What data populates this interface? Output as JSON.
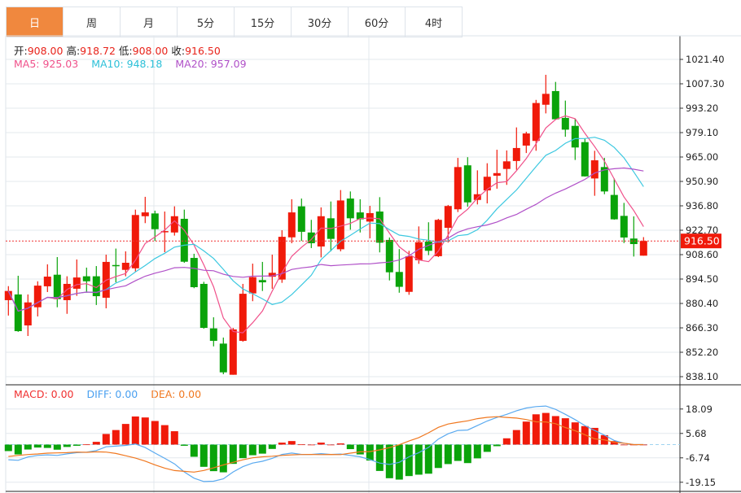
{
  "tabs": [
    {
      "label": "日",
      "active": true
    },
    {
      "label": "周",
      "active": false
    },
    {
      "label": "月",
      "active": false
    },
    {
      "label": "5分",
      "active": false
    },
    {
      "label": "15分",
      "active": false
    },
    {
      "label": "30分",
      "active": false
    },
    {
      "label": "60分",
      "active": false
    },
    {
      "label": "4时",
      "active": false
    }
  ],
  "ohlc_info": {
    "open_label": "开:",
    "open": "908.00",
    "high_label": "高:",
    "high": "918.72",
    "low_label": "低:",
    "low": "908.00",
    "close_label": "收:",
    "close": "916.50"
  },
  "ma_info": {
    "ma5": "MA5: 925.03",
    "ma10": "MA10: 948.18",
    "ma20": "MA20: 957.09"
  },
  "macd_info": {
    "macd": "MACD: 0.00",
    "diff": "DIFF: 0.00",
    "dea": "DEA: 0.00"
  },
  "current_price_label": "916.50",
  "colors": {
    "up": "#f01a0a",
    "down": "#0aa30a",
    "ma5": "#f0508a",
    "ma10": "#3cc8e0",
    "ma20": "#b050c8",
    "diff": "#5aaaf0",
    "dea": "#f07820",
    "accent": "#f0883e"
  },
  "chart_data": [
    {
      "type": "candlestick",
      "title": "",
      "price_axis_labels": [
        "1021.40",
        "1007.30",
        "993.20",
        "979.10",
        "965.00",
        "950.90",
        "936.80",
        "922.70",
        "908.60",
        "894.50",
        "880.40",
        "866.30",
        "852.20",
        "838.10"
      ],
      "ylim": [
        838.1,
        1021.4
      ],
      "current_price": 916.5,
      "ohlc": [
        [
          882.3,
          887.6,
          890.4,
          873.4
        ],
        [
          885.6,
          864.4,
          896.4,
          864.0
        ],
        [
          867.7,
          881.0,
          885.6,
          861.6
        ],
        [
          878.2,
          890.7,
          893.2,
          872.9
        ],
        [
          890.3,
          895.9,
          903.0,
          887.0
        ],
        [
          897.0,
          882.9,
          907.2,
          878.2
        ],
        [
          882.3,
          891.7,
          896.1,
          874.4
        ],
        [
          888.9,
          895.4,
          905.8,
          884.8
        ],
        [
          896.1,
          893.2,
          901.1,
          886.6
        ],
        [
          896.1,
          884.6,
          902.0,
          879.5
        ],
        [
          883.7,
          904.4,
          908.6,
          877.6
        ],
        [
          902.6,
          902.3,
          912.1,
          892.6
        ],
        [
          899.8,
          903.9,
          910.5,
          896.1
        ],
        [
          900.7,
          931.5,
          934.6,
          898.9
        ],
        [
          930.8,
          933.0,
          942.0,
          926.8
        ],
        [
          932.4,
          923.3,
          934.0,
          916.5
        ],
        [
          921.8,
          922.2,
          933.5,
          910.0
        ],
        [
          921.4,
          930.8,
          936.5,
          919.6
        ],
        [
          929.3,
          904.5,
          934.6,
          903.9
        ],
        [
          906.7,
          889.8,
          909.1,
          889.2
        ],
        [
          891.7,
          866.3,
          892.9,
          865.8
        ],
        [
          866.0,
          858.8,
          872.4,
          855.6
        ],
        [
          857.2,
          840.6,
          860.7,
          839.5
        ],
        [
          839.2,
          865.4,
          866.3,
          839.2
        ],
        [
          858.8,
          886.0,
          891.7,
          858.3
        ],
        [
          886.2,
          895.6,
          903.4,
          881.7
        ],
        [
          893.9,
          892.6,
          904.4,
          887.6
        ],
        [
          895.8,
          898.1,
          908.6,
          888.9
        ],
        [
          894.2,
          918.9,
          922.7,
          892.3
        ],
        [
          918.6,
          933.0,
          940.6,
          915.2
        ],
        [
          936.5,
          921.8,
          941.0,
          916.5
        ],
        [
          921.4,
          915.2,
          928.7,
          912.4
        ],
        [
          913.3,
          930.8,
          935.9,
          907.0
        ],
        [
          929.6,
          917.7,
          939.3,
          910.5
        ],
        [
          911.7,
          939.9,
          945.9,
          910.5
        ],
        [
          941.0,
          929.6,
          945.1,
          923.0
        ],
        [
          933.0,
          929.0,
          940.6,
          921.4
        ],
        [
          927.7,
          932.6,
          936.8,
          918.0
        ],
        [
          933.5,
          915.5,
          941.8,
          909.9
        ],
        [
          917.1,
          898.4,
          918.5,
          893.7
        ],
        [
          898.6,
          890.0,
          911.8,
          886.6
        ],
        [
          887.1,
          907.7,
          910.8,
          885.4
        ],
        [
          905.4,
          915.8,
          924.9,
          903.3
        ],
        [
          916.1,
          910.8,
          927.3,
          908.3
        ],
        [
          907.7,
          928.7,
          929.3,
          907.2
        ],
        [
          924.1,
          936.7,
          937.3,
          915.6
        ],
        [
          934.8,
          959.2,
          964.5,
          933.2
        ],
        [
          960.2,
          938.8,
          964.9,
          936.3
        ],
        [
          940.2,
          943.5,
          957.3,
          937.6
        ],
        [
          945.7,
          953.6,
          961.4,
          938.2
        ],
        [
          954.2,
          955.7,
          969.2,
          946.7
        ],
        [
          958.1,
          962.5,
          968.8,
          948.9
        ],
        [
          962.7,
          970.2,
          982.1,
          957.6
        ],
        [
          971.6,
          978.6,
          979.6,
          967.3
        ],
        [
          974.3,
          996.2,
          998.0,
          968.6
        ],
        [
          995.2,
          1001.5,
          1012.5,
          990.2
        ],
        [
          1003.1,
          986.8,
          1008.4,
          986.6
        ],
        [
          987.6,
          980.8,
          997.6,
          976.7
        ],
        [
          983.0,
          970.5,
          987.1,
          963.3
        ],
        [
          973.6,
          953.8,
          975.8,
          953.7
        ],
        [
          952.6,
          963.1,
          968.6,
          942.6
        ],
        [
          959.2,
          945.1,
          964.5,
          943.5
        ],
        [
          943.1,
          929.0,
          952.6,
          928.8
        ],
        [
          931.0,
          918.5,
          938.5,
          915.3
        ],
        [
          917.9,
          914.7,
          930.7,
          907.5
        ],
        [
          908.0,
          916.5,
          918.72,
          908.0
        ]
      ],
      "ma_periods": [
        5,
        10,
        20
      ]
    },
    {
      "type": "bar",
      "title": "MACD",
      "axis_labels": [
        "18.09",
        "5.68",
        "-6.74",
        "-19.15"
      ],
      "ylim": [
        -21,
        22
      ],
      "macd_hist": [
        -3.3,
        -5.0,
        -2.5,
        -1.5,
        -1.7,
        -2.6,
        -1.2,
        -0.6,
        0.1,
        1.4,
        5.4,
        7.4,
        10.5,
        14.3,
        13.8,
        12.0,
        9.9,
        6.8,
        -0.6,
        -6.2,
        -11.3,
        -13.5,
        -14.1,
        -9.8,
        -6.9,
        -5.4,
        -4.6,
        -2.2,
        1.0,
        1.8,
        0.1,
        0,
        1.0,
        0,
        0.6,
        -2.3,
        -5.0,
        -8.1,
        -13.4,
        -17.1,
        -17.8,
        -16.0,
        -15.3,
        -14.8,
        -11.9,
        -9.9,
        -8.3,
        -9.4,
        -7.0,
        -3.7,
        -0.8,
        3.2,
        7.4,
        11.7,
        15.4,
        16.1,
        14.5,
        13.4,
        11.3,
        9.4,
        8.5,
        4.8,
        1.8,
        0,
        0,
        0
      ],
      "diff": [
        -7.7,
        -8.0,
        -6.3,
        -5.5,
        -5.2,
        -5.5,
        -4.7,
        -4.1,
        -3.9,
        -3.0,
        -1.1,
        -0.8,
        -0.4,
        0.3,
        -1.5,
        -4.3,
        -7.0,
        -9.8,
        -13.9,
        -17.1,
        -18.8,
        -18.6,
        -17.4,
        -13.9,
        -11.2,
        -9.4,
        -8.5,
        -7.0,
        -5.0,
        -4.3,
        -5.0,
        -5.0,
        -4.6,
        -5.0,
        -4.8,
        -5.5,
        -6.2,
        -7.6,
        -9.4,
        -10.1,
        -9.0,
        -6.2,
        -4.1,
        -1.4,
        2.8,
        5.5,
        7.2,
        7.4,
        9.7,
        12.0,
        13.8,
        15.4,
        17.2,
        18.6,
        19.3,
        19.6,
        17.9,
        15.4,
        12.7,
        9.7,
        7.2,
        4.8,
        2.1,
        0.7,
        0,
        0
      ]
    }
  ]
}
